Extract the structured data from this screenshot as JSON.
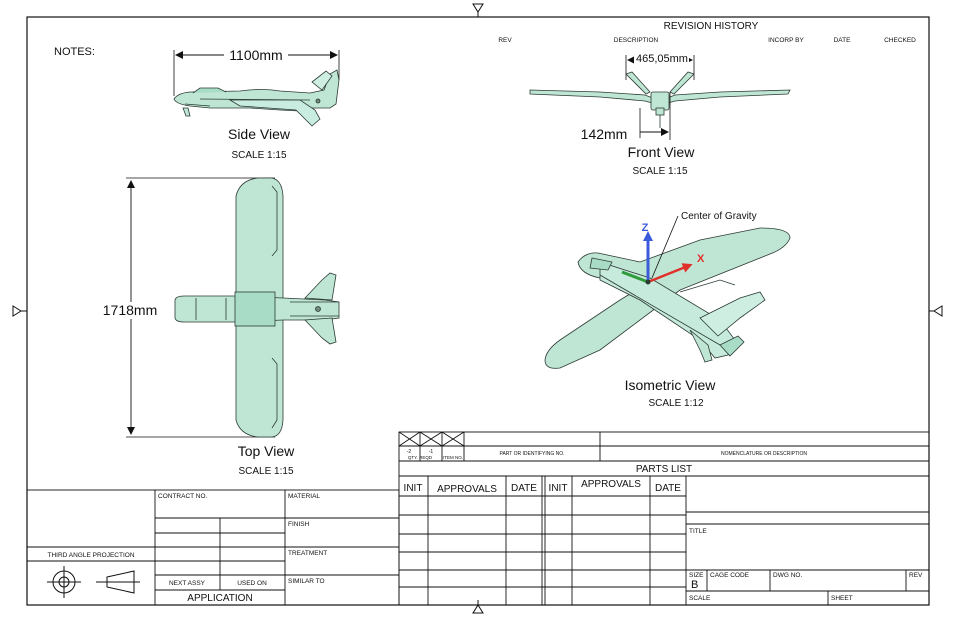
{
  "sheet": {
    "notes_label": "NOTES:",
    "third_angle_projection": "THIRD ANGLE PROJECTION"
  },
  "revision_history": {
    "title": "REVISION HISTORY",
    "columns": [
      "REV",
      "DESCRIPTION",
      "INCORP BY",
      "DATE",
      "CHECKED"
    ]
  },
  "views": {
    "side": {
      "title": "Side View",
      "scale": "SCALE 1:15",
      "dimension": "1100mm"
    },
    "front": {
      "title": "Front View",
      "scale": "SCALE 1:15",
      "dimension_top": "465,05mm",
      "dimension_height": "142mm"
    },
    "top": {
      "title": "Top View",
      "scale": "SCALE 1:15",
      "dimension": "1718mm"
    },
    "isometric": {
      "title": "Isometric View",
      "scale": "SCALE 1:12",
      "cg_label": "Center of Gravity",
      "axis_z": "Z",
      "axis_x": "X"
    }
  },
  "parts_list": {
    "qty_label": "QTY. REQD",
    "qty_values": [
      "-2",
      "-1"
    ],
    "item_label": "ITEM NO.",
    "part_label": "PART OR IDENTIFYING NO.",
    "nomenclature_label": "NOMENCLATURE OR DESCRIPTION",
    "title": "PARTS LIST"
  },
  "approvals": {
    "headers": [
      "INIT",
      "APPROVALS",
      "DATE",
      "INIT",
      "APPROVALS",
      "DATE"
    ]
  },
  "title_block": {
    "contract_no": "CONTRACT NO.",
    "material": "MATERIAL",
    "finish": "FINISH",
    "treatment": "TREATMENT",
    "similar_to": "SIMILAR TO",
    "next_assy": "NEXT ASSY",
    "used_on": "USED ON",
    "application": "APPLICATION",
    "title": "TITLE",
    "size": "SIZE",
    "size_value": "B",
    "cage_code": "CAGE CODE",
    "dwg_no": "DWG NO.",
    "rev": "REV",
    "scale": "SCALE",
    "sheet": "SHEET"
  },
  "colors": {
    "model_fill": "#bfe6d4",
    "model_stroke": "#2b3b34",
    "axis_z": "#3b5bdb",
    "axis_x": "#e0312b",
    "axis_y": "#2e9c3a"
  }
}
